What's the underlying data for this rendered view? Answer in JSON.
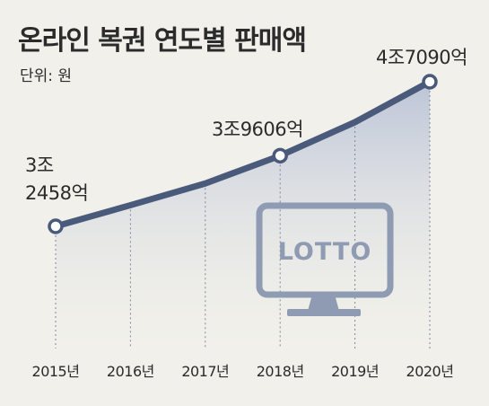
{
  "chart_data": {
    "type": "line",
    "title": "온라인 복권 연도별 판매액",
    "unit_label": "단위: 원",
    "categories": [
      "2015년",
      "2016년",
      "2017년",
      "2018년",
      "2019년",
      "2020년"
    ],
    "values": [
      32458,
      34600,
      36800,
      39606,
      43000,
      47090
    ],
    "value_unit": "억원",
    "data_labels": [
      {
        "index": 0,
        "lines": [
          "3조",
          "2458억"
        ]
      },
      {
        "index": 3,
        "lines": [
          "3조9606억"
        ]
      },
      {
        "index": 5,
        "lines": [
          "4조7090억"
        ]
      }
    ],
    "marked_points": [
      0,
      3,
      5
    ],
    "illustration": {
      "icon": "monitor-icon",
      "screen_text": "LOTTO"
    },
    "colors": {
      "background": "#f1f0ea",
      "line": "#4a5a7a",
      "area_top": "#b9c2d6",
      "monitor": "#8e9bb3"
    }
  }
}
